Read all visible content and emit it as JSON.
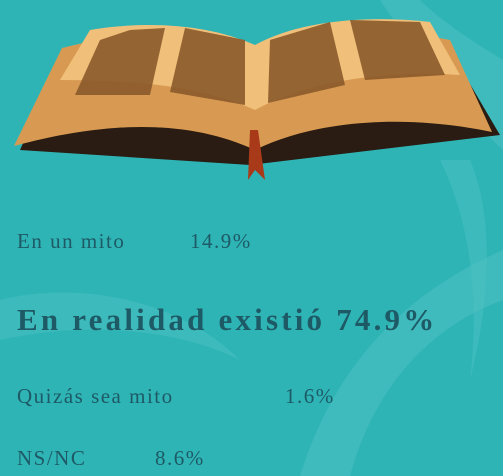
{
  "items": [
    {
      "label": "En un mito",
      "value": "14.9%"
    },
    {
      "label": "En realidad existió 74.9%"
    },
    {
      "label": "Quizás sea mito",
      "value": "1.6%"
    },
    {
      "label": "NS/NC",
      "value": "8.6%"
    }
  ]
}
